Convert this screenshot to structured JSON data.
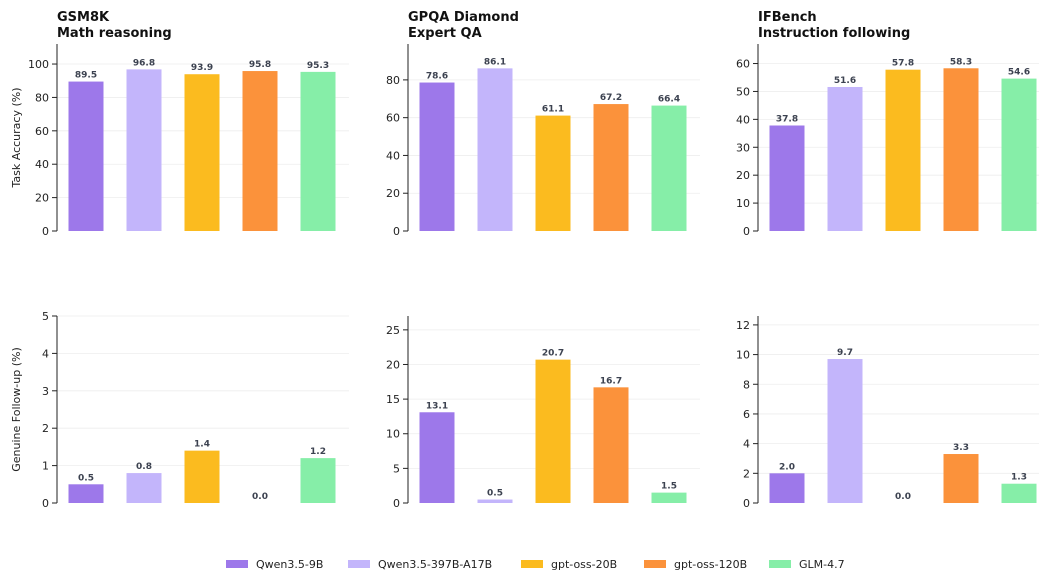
{
  "colors": {
    "Qwen3.5-9B": "#9d78ea",
    "Qwen3.5-397B-A17B": "#c3b5fb",
    "gpt-oss-20B": "#fbbb1f",
    "gpt-oss-120B": "#fb923b",
    "GLM-4.7": "#86eea8"
  },
  "legend": {
    "items": [
      "Qwen3.5-9B",
      "Qwen3.5-397B-A17B",
      "gpt-oss-20B",
      "gpt-oss-120B",
      "GLM-4.7"
    ]
  },
  "chart_data": [
    {
      "type": "bar",
      "title": "GSM8K",
      "subtitle": "Math reasoning",
      "ylabel": "Task Accuracy (%)",
      "xlabel": "",
      "ylim": [
        0,
        112
      ],
      "yticks": [
        0,
        20,
        40,
        60,
        80,
        100
      ],
      "categories": [
        "Qwen3.5-9B",
        "Qwen3.5-397B-A17B",
        "gpt-oss-20B",
        "gpt-oss-120B",
        "GLM-4.7"
      ],
      "values": [
        89.5,
        96.8,
        93.9,
        95.8,
        95.3
      ],
      "labels": [
        "89.5",
        "96.8",
        "93.9",
        "95.8",
        "95.3"
      ],
      "grid": true
    },
    {
      "type": "bar",
      "title": "GPQA Diamond",
      "subtitle": "Expert QA",
      "ylabel": "",
      "xlabel": "",
      "ylim": [
        0,
        99
      ],
      "yticks": [
        0,
        20,
        40,
        60,
        80
      ],
      "categories": [
        "Qwen3.5-9B",
        "Qwen3.5-397B-A17B",
        "gpt-oss-20B",
        "gpt-oss-120B",
        "GLM-4.7"
      ],
      "values": [
        78.6,
        86.1,
        61.1,
        67.2,
        66.4
      ],
      "labels": [
        "78.6",
        "86.1",
        "61.1",
        "67.2",
        "66.4"
      ],
      "grid": true
    },
    {
      "type": "bar",
      "title": "IFBench",
      "subtitle": "Instruction following",
      "ylabel": "",
      "xlabel": "",
      "ylim": [
        0,
        67
      ],
      "yticks": [
        0,
        10,
        20,
        30,
        40,
        50,
        60
      ],
      "categories": [
        "Qwen3.5-9B",
        "Qwen3.5-397B-A17B",
        "gpt-oss-20B",
        "gpt-oss-120B",
        "GLM-4.7"
      ],
      "values": [
        37.8,
        51.6,
        57.8,
        58.3,
        54.6
      ],
      "labels": [
        "37.8",
        "51.6",
        "57.8",
        "58.3",
        "54.6"
      ],
      "grid": true
    },
    {
      "type": "bar",
      "title": "",
      "subtitle": "",
      "ylabel": "Genuine Follow-up (%)",
      "xlabel": "",
      "ylim": [
        0,
        5
      ],
      "yticks": [
        0,
        1,
        2,
        3,
        4,
        5
      ],
      "categories": [
        "Qwen3.5-9B",
        "Qwen3.5-397B-A17B",
        "gpt-oss-20B",
        "gpt-oss-120B",
        "GLM-4.7"
      ],
      "values": [
        0.5,
        0.8,
        1.4,
        0.0,
        1.2
      ],
      "labels": [
        "0.5",
        "0.8",
        "1.4",
        "0.0",
        "1.2"
      ],
      "grid": true
    },
    {
      "type": "bar",
      "title": "",
      "subtitle": "",
      "ylabel": "",
      "xlabel": "",
      "ylim": [
        0,
        27
      ],
      "yticks": [
        0,
        5,
        10,
        15,
        20,
        25
      ],
      "categories": [
        "Qwen3.5-9B",
        "Qwen3.5-397B-A17B",
        "gpt-oss-20B",
        "gpt-oss-120B",
        "GLM-4.7"
      ],
      "values": [
        13.1,
        0.5,
        20.7,
        16.7,
        1.5
      ],
      "labels": [
        "13.1",
        "0.5",
        "20.7",
        "16.7",
        "1.5"
      ],
      "grid": true
    },
    {
      "type": "bar",
      "title": "",
      "subtitle": "",
      "ylabel": "",
      "xlabel": "",
      "ylim": [
        0,
        12.6
      ],
      "yticks": [
        0,
        2,
        4,
        6,
        8,
        10,
        12
      ],
      "categories": [
        "Qwen3.5-9B",
        "Qwen3.5-397B-A17B",
        "gpt-oss-20B",
        "gpt-oss-120B",
        "GLM-4.7"
      ],
      "values": [
        2.0,
        9.7,
        0.0,
        3.3,
        1.3
      ],
      "labels": [
        "2.0",
        "9.7",
        "0.0",
        "3.3",
        "1.3"
      ],
      "grid": true
    }
  ]
}
